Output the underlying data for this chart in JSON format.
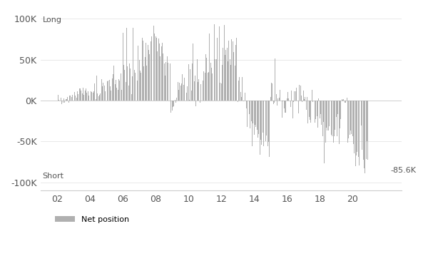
{
  "title": "",
  "ylabel_long": "Long",
  "ylabel_short": "Short",
  "annotation": "-85.6K",
  "ylim": [
    -110000,
    110000
  ],
  "yticks": [
    -100000,
    -50000,
    0,
    50000,
    100000
  ],
  "ytick_labels": [
    "-100K",
    "-50K",
    "0K",
    "50K",
    "100K"
  ],
  "xtick_labels": [
    "02",
    "04",
    "06",
    "08",
    "10",
    "12",
    "14",
    "16",
    "18",
    "20"
  ],
  "bar_color": "#b0b0b0",
  "bg_color": "#ffffff",
  "legend_label": "Net position",
  "bar_width": 0.7
}
